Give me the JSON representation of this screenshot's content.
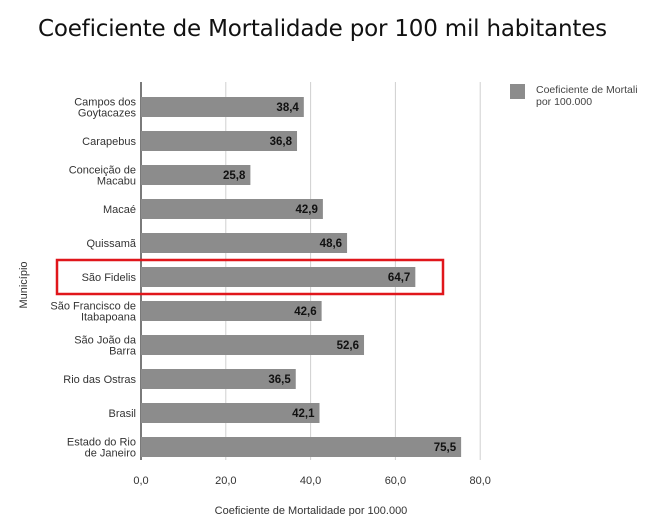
{
  "slide": {
    "title": "Coeficiente de Mortalidade por 100 mil habitantes"
  },
  "chart_data": {
    "type": "bar",
    "orientation": "horizontal",
    "categories": [
      "Campos dos Goytacazes",
      "Carapebus",
      "Conceição de Macabu",
      "Macaé",
      "Quissamã",
      "São Fidelis",
      "São Francisco de Itabapoana",
      "São João da Barra",
      "Rio das Ostras",
      "Brasil",
      "Estado do Rio de Janeiro"
    ],
    "category_lines": [
      [
        "Campos dos",
        "Goytacazes"
      ],
      [
        "Carapebus"
      ],
      [
        "Conceição de",
        "Macabu"
      ],
      [
        "Macaé"
      ],
      [
        "Quissamã"
      ],
      [
        "São Fidelis"
      ],
      [
        "São Francisco de",
        "Itabapoana"
      ],
      [
        "São João da",
        "Barra"
      ],
      [
        "Rio das Ostras"
      ],
      [
        "Brasil"
      ],
      [
        "Estado do Rio",
        "de Janeiro"
      ]
    ],
    "series": [
      {
        "name": "Coeficiente de Mortalidade por 100.000",
        "values": [
          38.4,
          36.8,
          25.8,
          42.9,
          48.6,
          64.7,
          42.6,
          52.6,
          36.5,
          42.1,
          75.5
        ],
        "data_labels": [
          "38,4",
          "36,8",
          "25,8",
          "42,9",
          "48,6",
          "64,7",
          "42,6",
          "52,6",
          "36,5",
          "42,1",
          "75,5"
        ]
      }
    ],
    "legend_lines": [
      "Coeficiente de Mortali",
      "por 100.000"
    ],
    "xlabel": "Coeficiente de Mortalidade por 100.000",
    "ylabel": "Município",
    "xlim": [
      0,
      80
    ],
    "xticks": [
      0,
      20,
      40,
      60,
      80
    ],
    "xtick_labels": [
      "0,0",
      "20,0",
      "40,0",
      "60,0",
      "80,0"
    ],
    "grid": "vertical",
    "legend_position": "top-right",
    "highlighted_category": "São Fidelis",
    "colors": {
      "bar": "#8c8c8c",
      "grid": "#d0d0d0",
      "highlight": "#e0161b"
    }
  }
}
